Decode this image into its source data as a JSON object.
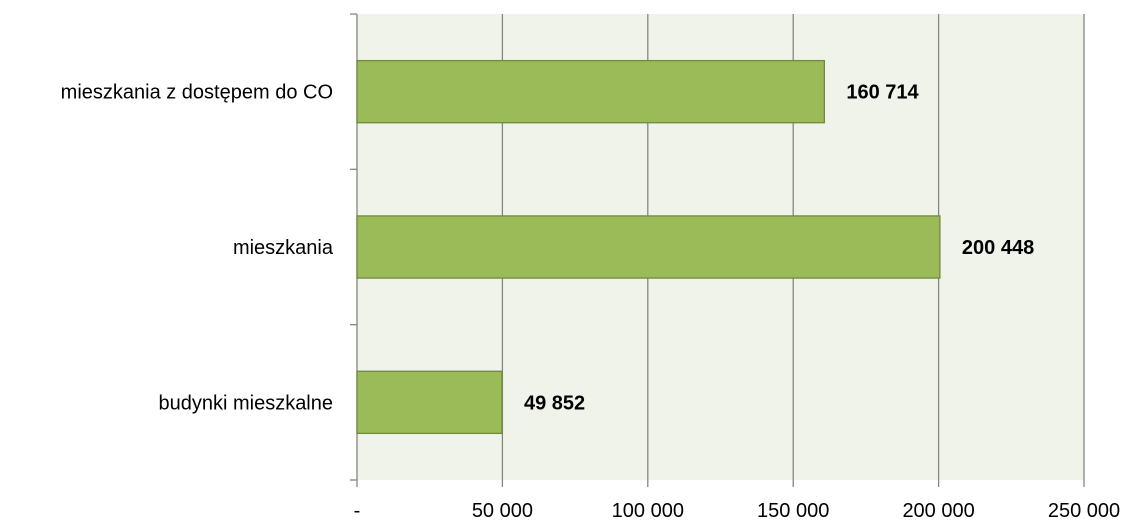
{
  "chart_data": {
    "type": "bar",
    "orientation": "horizontal",
    "categories": [
      "budynki mieszkalne",
      "mieszkania",
      "mieszkania z dostępem do CO"
    ],
    "values": [
      49852,
      200448,
      160714
    ],
    "data_labels": [
      "49 852",
      "200 448",
      "160 714"
    ],
    "x_ticks": [
      0,
      50000,
      100000,
      150000,
      200000,
      250000
    ],
    "x_tick_labels": [
      "-",
      "50 000",
      "100 000",
      "150 000",
      "200 000",
      "250 000"
    ],
    "xlim": [
      0,
      250000
    ],
    "title": "",
    "xlabel": "",
    "ylabel": "",
    "grid": "vertical",
    "legend": "none",
    "colors": {
      "bar_fill": "#9bbb59",
      "bar_stroke": "#71893f",
      "plot_background": "#f0f3ea",
      "gridline": "#868686",
      "axis": "#868686"
    }
  }
}
